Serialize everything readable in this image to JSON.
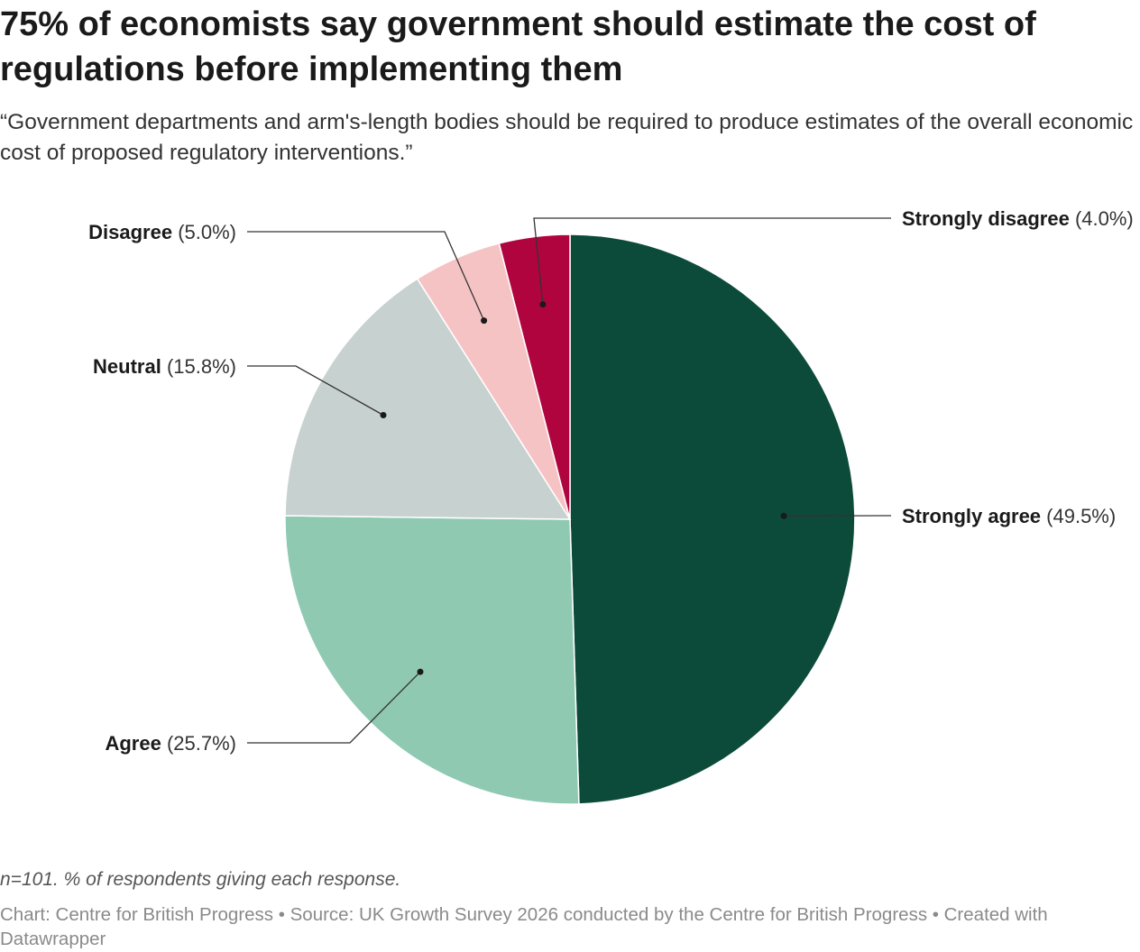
{
  "title": "75% of economists say government should estimate the cost of regulations before implementing them",
  "subtitle": "“Government departments and arm's-length bodies should be required to produce estimates of the overall economic cost of proposed regulatory interventions.”",
  "note": "n=101. % of respondents giving each response.",
  "source": "Chart: Centre for British Progress • Source: UK Growth Survey 2026 conducted by the Centre for British Progress • Created with Datawrapper",
  "chart_data": {
    "type": "pie",
    "slices": [
      {
        "label": "Strongly agree",
        "value": 49.5,
        "value_label": "(49.5%)",
        "color": "#0c4a3a",
        "label_side": "right"
      },
      {
        "label": "Agree",
        "value": 25.7,
        "value_label": "(25.7%)",
        "color": "#8fc9b2",
        "label_side": "left"
      },
      {
        "label": "Neutral",
        "value": 15.8,
        "value_label": "(15.8%)",
        "color": "#c7d1cf",
        "label_side": "left"
      },
      {
        "label": "Disagree",
        "value": 5.0,
        "value_label": "(5.0%)",
        "color": "#f6c3c5",
        "label_side": "left"
      },
      {
        "label": "Strongly disagree",
        "value": 4.0,
        "value_label": "(4.0%)",
        "color": "#b0043e",
        "label_side": "right"
      }
    ],
    "start": "12 o'clock",
    "direction": "clockwise",
    "legend": "none"
  }
}
